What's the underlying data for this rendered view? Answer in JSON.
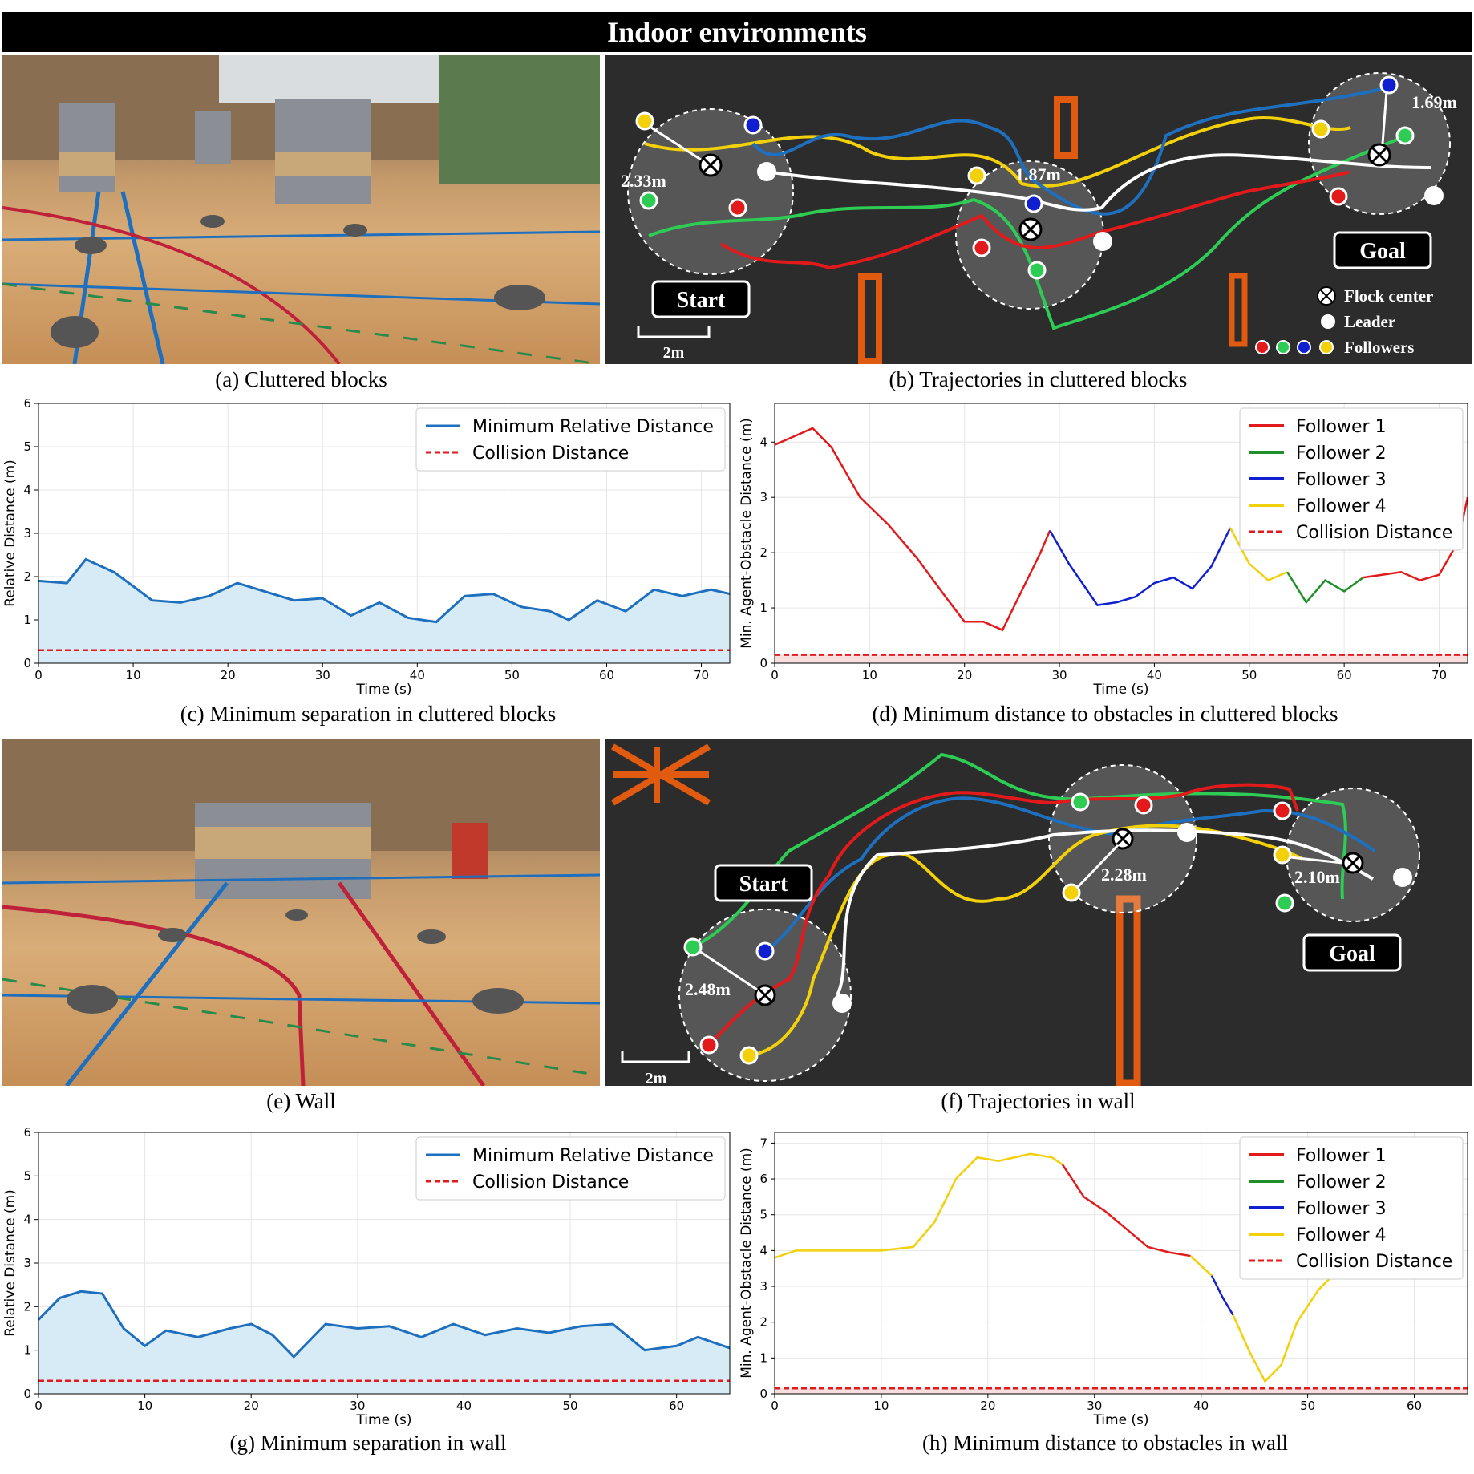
{
  "title": "Indoor environments",
  "captions": {
    "a": "(a) Cluttered blocks",
    "b": "(b) Trajectories in cluttered blocks",
    "c": "(c) Minimum separation in cluttered blocks",
    "d": "(d) Minimum distance to obstacles in cluttered blocks",
    "e": "(e) Wall",
    "f": "(f) Trajectories in wall",
    "g": "(g) Minimum separation in wall",
    "h": "(h) Minimum distance to obstacles in wall"
  },
  "map_b": {
    "start": "Start",
    "goal": "Goal",
    "scale": "2m",
    "d1": "2.33m",
    "d2": "1.87m",
    "d3": "1.69m",
    "legend_center": "Flock center",
    "legend_leader": "Leader",
    "legend_followers": "Followers"
  },
  "map_f": {
    "start": "Start",
    "goal": "Goal",
    "scale": "2m",
    "d1": "2.48m",
    "d2": "2.28m",
    "d3": "2.10m"
  },
  "colors": {
    "f1": "#e31a1c",
    "f2": "#1f8f2a",
    "f3": "#1020d0",
    "f4": "#f2d00a",
    "blue": "#1f6fbf",
    "collision": "#e31a1c"
  },
  "chart_data": [
    {
      "id": "c",
      "type": "line",
      "xlabel": "Time (s)",
      "ylabel": "Relative Distance (m)",
      "xlim": [
        0,
        73
      ],
      "ylim": [
        0,
        6
      ],
      "xticks": [
        0,
        10,
        20,
        30,
        40,
        50,
        60,
        70
      ],
      "yticks": [
        0,
        1,
        2,
        3,
        4,
        5,
        6
      ],
      "legend": [
        "Minimum Relative Distance",
        "Collision Distance"
      ],
      "collision_distance": 0.3,
      "series": [
        {
          "name": "Minimum Relative Distance",
          "x": [
            0,
            3,
            5,
            8,
            12,
            15,
            18,
            21,
            24,
            27,
            30,
            33,
            36,
            39,
            42,
            45,
            48,
            51,
            54,
            56,
            59,
            62,
            65,
            68,
            71,
            73
          ],
          "y": [
            1.9,
            1.85,
            2.4,
            2.1,
            1.45,
            1.4,
            1.55,
            1.85,
            1.65,
            1.45,
            1.5,
            1.1,
            1.4,
            1.05,
            0.95,
            1.55,
            1.6,
            1.3,
            1.2,
            1.0,
            1.45,
            1.2,
            1.7,
            1.55,
            1.7,
            1.6
          ]
        }
      ]
    },
    {
      "id": "d",
      "type": "line",
      "xlabel": "Time (s)",
      "ylabel": "Min. Agent-Obstacle Distance (m)",
      "xlim": [
        0,
        73
      ],
      "ylim": [
        0,
        4.7
      ],
      "xticks": [
        0,
        10,
        20,
        30,
        40,
        50,
        60,
        70
      ],
      "yticks": [
        0,
        1,
        2,
        3,
        4
      ],
      "legend": [
        "Follower 1",
        "Follower 2",
        "Follower 3",
        "Follower 4",
        "Collision Distance"
      ],
      "collision_distance": 0.15,
      "segments": [
        {
          "follower": "f1",
          "x": [
            0,
            2,
            4,
            6,
            9,
            12,
            15,
            18,
            20,
            22,
            24,
            26,
            28,
            29
          ],
          "y": [
            3.95,
            4.1,
            4.25,
            3.9,
            3.0,
            2.5,
            1.9,
            1.2,
            0.75,
            0.75,
            0.6,
            1.3,
            2.0,
            2.4
          ]
        },
        {
          "follower": "f3",
          "x": [
            29,
            31,
            34,
            36,
            38,
            40,
            42,
            44,
            46,
            48
          ],
          "y": [
            2.4,
            1.8,
            1.05,
            1.1,
            1.2,
            1.45,
            1.55,
            1.35,
            1.75,
            2.45
          ]
        },
        {
          "follower": "f4",
          "x": [
            48,
            50,
            52,
            54
          ],
          "y": [
            2.45,
            1.8,
            1.5,
            1.65
          ]
        },
        {
          "follower": "f2",
          "x": [
            54,
            56,
            58,
            60,
            62
          ],
          "y": [
            1.65,
            1.1,
            1.5,
            1.3,
            1.55
          ]
        },
        {
          "follower": "f1",
          "x": [
            62,
            64,
            66,
            68,
            70,
            72,
            73
          ],
          "y": [
            1.55,
            1.6,
            1.65,
            1.5,
            1.6,
            2.2,
            3.0
          ]
        }
      ]
    },
    {
      "id": "g",
      "type": "line",
      "xlabel": "Time (s)",
      "ylabel": "Relative Distance (m)",
      "xlim": [
        0,
        65
      ],
      "ylim": [
        0,
        6
      ],
      "xticks": [
        0,
        10,
        20,
        30,
        40,
        50,
        60
      ],
      "yticks": [
        0,
        1,
        2,
        3,
        4,
        5,
        6
      ],
      "legend": [
        "Minimum Relative Distance",
        "Collision Distance"
      ],
      "collision_distance": 0.3,
      "series": [
        {
          "name": "Minimum Relative Distance",
          "x": [
            0,
            2,
            4,
            6,
            8,
            10,
            12,
            15,
            18,
            20,
            22,
            24,
            27,
            30,
            33,
            36,
            39,
            42,
            45,
            48,
            51,
            54,
            57,
            60,
            62,
            65
          ],
          "y": [
            1.7,
            2.2,
            2.35,
            2.3,
            1.5,
            1.1,
            1.45,
            1.3,
            1.5,
            1.6,
            1.35,
            0.85,
            1.6,
            1.5,
            1.55,
            1.3,
            1.6,
            1.35,
            1.5,
            1.4,
            1.55,
            1.6,
            1.0,
            1.1,
            1.3,
            1.05
          ]
        }
      ]
    },
    {
      "id": "h",
      "type": "line",
      "xlabel": "Time (s)",
      "ylabel": "Min. Agent-Obstacle Distance (m)",
      "xlim": [
        0,
        65
      ],
      "ylim": [
        0,
        7.3
      ],
      "xticks": [
        0,
        10,
        20,
        30,
        40,
        50,
        60
      ],
      "yticks": [
        0,
        1,
        2,
        3,
        4,
        5,
        6,
        7
      ],
      "legend": [
        "Follower 1",
        "Follower 2",
        "Follower 3",
        "Follower 4",
        "Collision Distance"
      ],
      "collision_distance": 0.15,
      "segments": [
        {
          "follower": "f4",
          "x": [
            0,
            2,
            5,
            10,
            13,
            15,
            17,
            19,
            21,
            24,
            26,
            27
          ],
          "y": [
            3.8,
            4.0,
            4.0,
            4.0,
            4.1,
            4.8,
            6.0,
            6.6,
            6.5,
            6.7,
            6.6,
            6.4
          ]
        },
        {
          "follower": "f1",
          "x": [
            27,
            29,
            31,
            33,
            35,
            37,
            39
          ],
          "y": [
            6.4,
            5.5,
            5.1,
            4.6,
            4.1,
            3.95,
            3.85
          ]
        },
        {
          "follower": "f4",
          "x": [
            39,
            41
          ],
          "y": [
            3.85,
            3.3
          ]
        },
        {
          "follower": "f3",
          "x": [
            41,
            42,
            43
          ],
          "y": [
            3.3,
            2.7,
            2.2
          ]
        },
        {
          "follower": "f4",
          "x": [
            43,
            44.5,
            46,
            47.5,
            49,
            51,
            53,
            54
          ],
          "y": [
            2.2,
            1.2,
            0.35,
            0.8,
            2.0,
            2.9,
            3.5,
            3.8
          ]
        }
      ]
    }
  ]
}
